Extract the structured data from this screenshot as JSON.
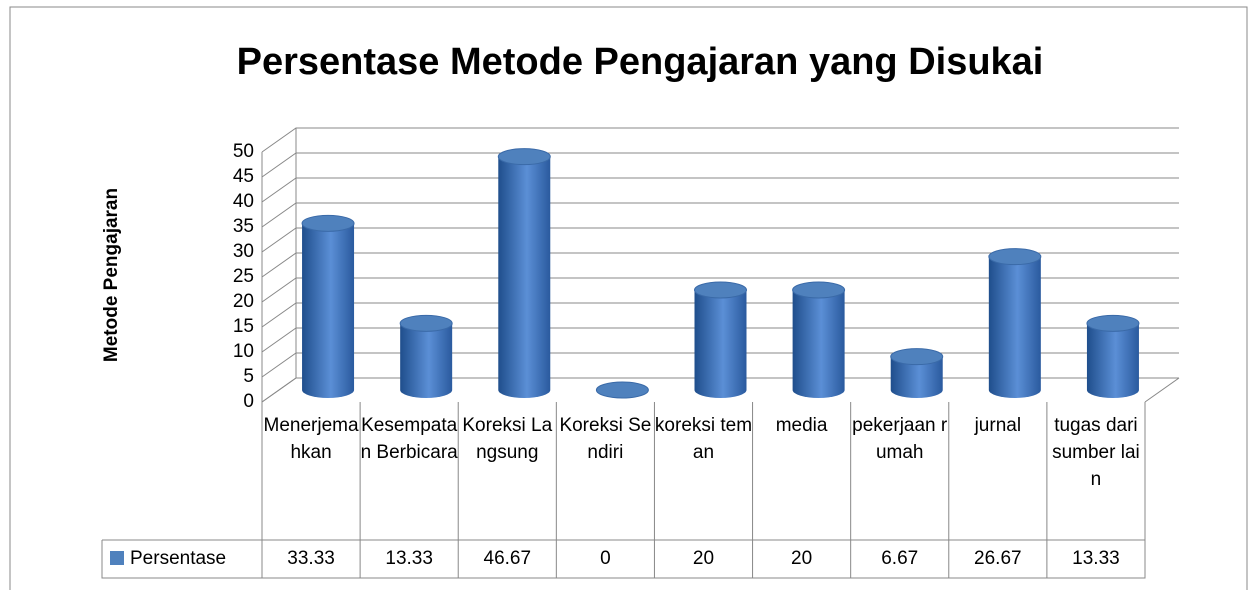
{
  "chart_data": {
    "type": "bar",
    "title": "Persentase Metode Pengajaran yang Disukai",
    "y_axis_label": "Metode Pengajaran",
    "categories": [
      "Menerjemahkan",
      "Kesempatan Berbicara",
      "Koreksi Langsung",
      "Koreksi Sendiri",
      "koreksi teman",
      "media",
      "pekerjaan rumah",
      "jurnal",
      "tugas dari sumber lain"
    ],
    "series": [
      {
        "name": "Persentase",
        "color": "#4f81bd",
        "values": [
          33.33,
          13.33,
          46.67,
          0,
          20,
          20,
          6.67,
          26.67,
          13.33
        ]
      }
    ],
    "ylim": [
      0,
      50
    ],
    "yticks": [
      0,
      5,
      10,
      15,
      20,
      25,
      30,
      35,
      40,
      45,
      50
    ],
    "grid": true
  }
}
